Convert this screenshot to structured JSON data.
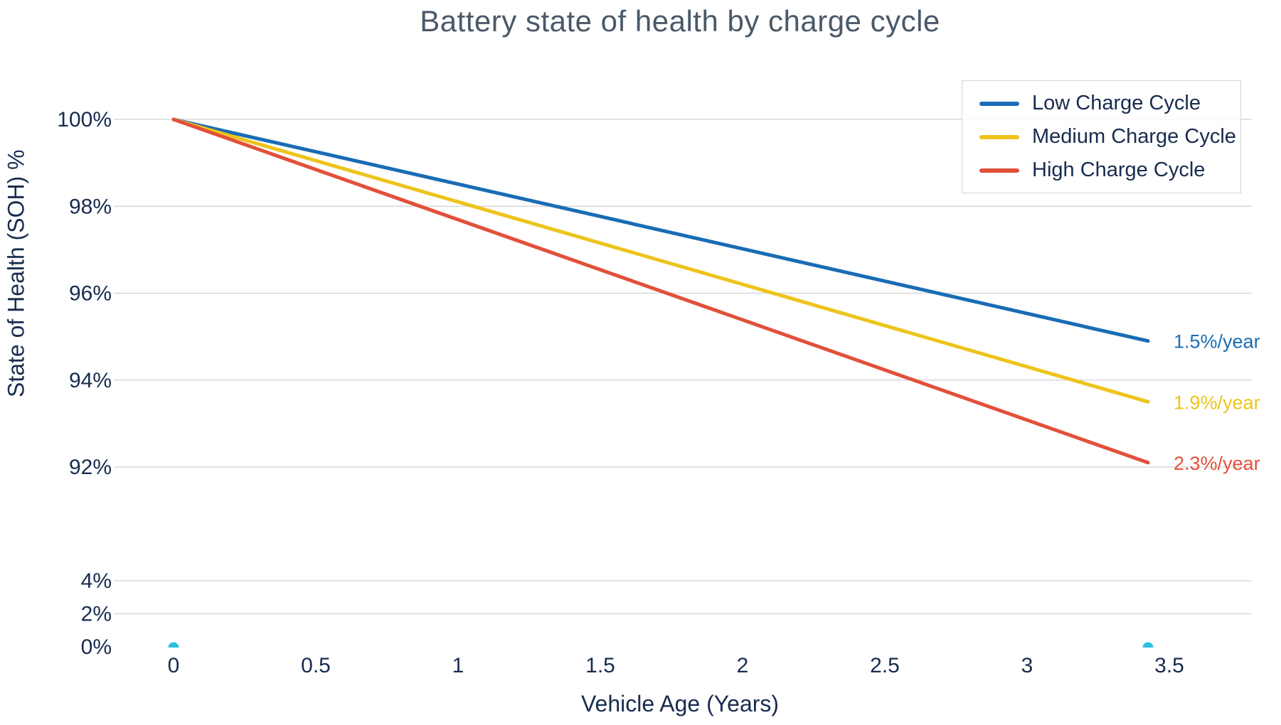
{
  "title": "Battery state of health by charge cycle",
  "chart_data": {
    "type": "line",
    "title": "Battery state of health by charge cycle",
    "xlabel": "Vehicle Age (Years)",
    "ylabel": "State of Health (SOH) %",
    "x_range": [
      0,
      3.5
    ],
    "grid": true,
    "legend_position": "upper-right",
    "y_axis_break": {
      "upper_section": [
        92,
        100
      ],
      "lower_section": [
        0,
        4
      ]
    },
    "x_ticks": [
      {
        "value": 0,
        "label": "0"
      },
      {
        "value": 0.5,
        "label": "0.5"
      },
      {
        "value": 1,
        "label": "1"
      },
      {
        "value": 1.5,
        "label": "1.5"
      },
      {
        "value": 2,
        "label": "2"
      },
      {
        "value": 2.5,
        "label": "2.5"
      },
      {
        "value": 3,
        "label": "3"
      },
      {
        "value": 3.5,
        "label": "3.5"
      }
    ],
    "y_ticks": [
      {
        "value": 100,
        "label": "100%",
        "grid": true
      },
      {
        "value": 98,
        "label": "98%",
        "grid": true
      },
      {
        "value": 96,
        "label": "96%",
        "grid": true
      },
      {
        "value": 94,
        "label": "94%",
        "grid": true
      },
      {
        "value": 92,
        "label": "92%",
        "grid": true
      },
      {
        "value": 4,
        "label": "4%",
        "grid": true
      },
      {
        "value": 2,
        "label": "2%",
        "grid": true
      },
      {
        "value": 0,
        "label": "0%",
        "grid": false
      }
    ],
    "series": [
      {
        "name": "Low Charge Cycle",
        "color": "#1a6cb5",
        "rate_label": "1.5%/year",
        "rate_pct_per_year": 1.5,
        "x": [
          0,
          3.425
        ],
        "y": [
          100,
          94.9
        ]
      },
      {
        "name": "Medium Charge Cycle",
        "color": "#eec41c",
        "rate_label": "1.9%/year",
        "rate_pct_per_year": 1.9,
        "x": [
          0,
          3.425
        ],
        "y": [
          100,
          93.5
        ]
      },
      {
        "name": "High Charge Cycle",
        "color": "#e2503a",
        "rate_label": "2.3%/year",
        "rate_pct_per_year": 2.3,
        "x": [
          0,
          3.425
        ],
        "y": [
          100,
          92.1
        ]
      }
    ],
    "extra_markers": {
      "description": "small cyan dots clipped at the 0% baseline",
      "color": "#2cc0df",
      "points": [
        {
          "x": 0,
          "y": 0
        },
        {
          "x": 3.425,
          "y": 0
        }
      ]
    },
    "style": {
      "grid_color": "#d8d8d8",
      "text_color": "#182c4f",
      "title_color": "#4a5968"
    }
  }
}
